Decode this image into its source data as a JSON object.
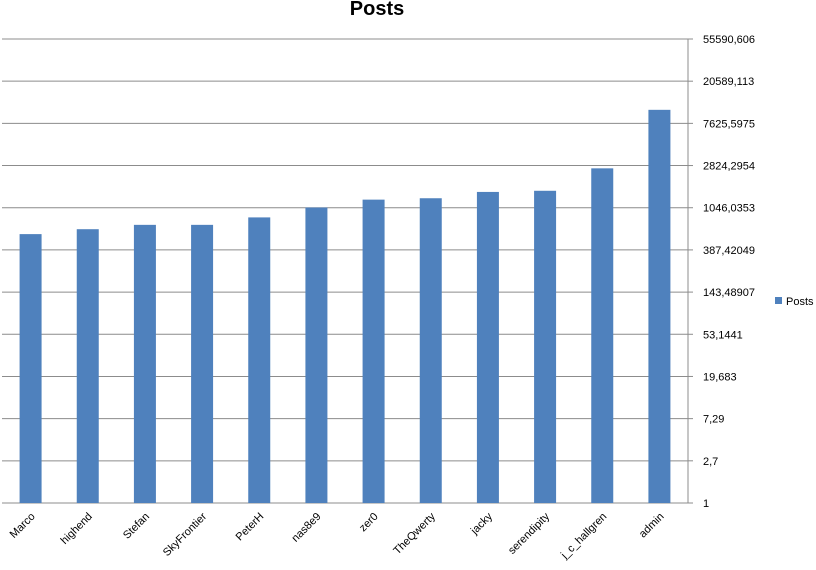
{
  "chart_data": {
    "type": "bar",
    "title": "Posts",
    "xlabel": "",
    "ylabel": "",
    "scale": "log",
    "log_base": 3,
    "y_tick_labels": [
      "1",
      "2,7",
      "7,29",
      "19,683",
      "53,1441",
      "143,48907",
      "387,42049",
      "1046,0353",
      "2824,2954",
      "7625,5975",
      "20589,113",
      "55590,606"
    ],
    "categories": [
      "Marco",
      "highend",
      "Stefan",
      "SkyFrontier",
      "PeterH",
      "nas8e9",
      "zer0",
      "TheQwerty",
      "jacky",
      "serendipity",
      "j_c_hallgren",
      "admin"
    ],
    "series": [
      {
        "name": "Posts",
        "color": "#4F81BD",
        "values": [
          1100,
          1250,
          1400,
          1400,
          1700,
          2200,
          2700,
          2800,
          3300,
          3400,
          6100,
          28000
        ]
      }
    ],
    "legend_position": "right",
    "grid": true
  }
}
